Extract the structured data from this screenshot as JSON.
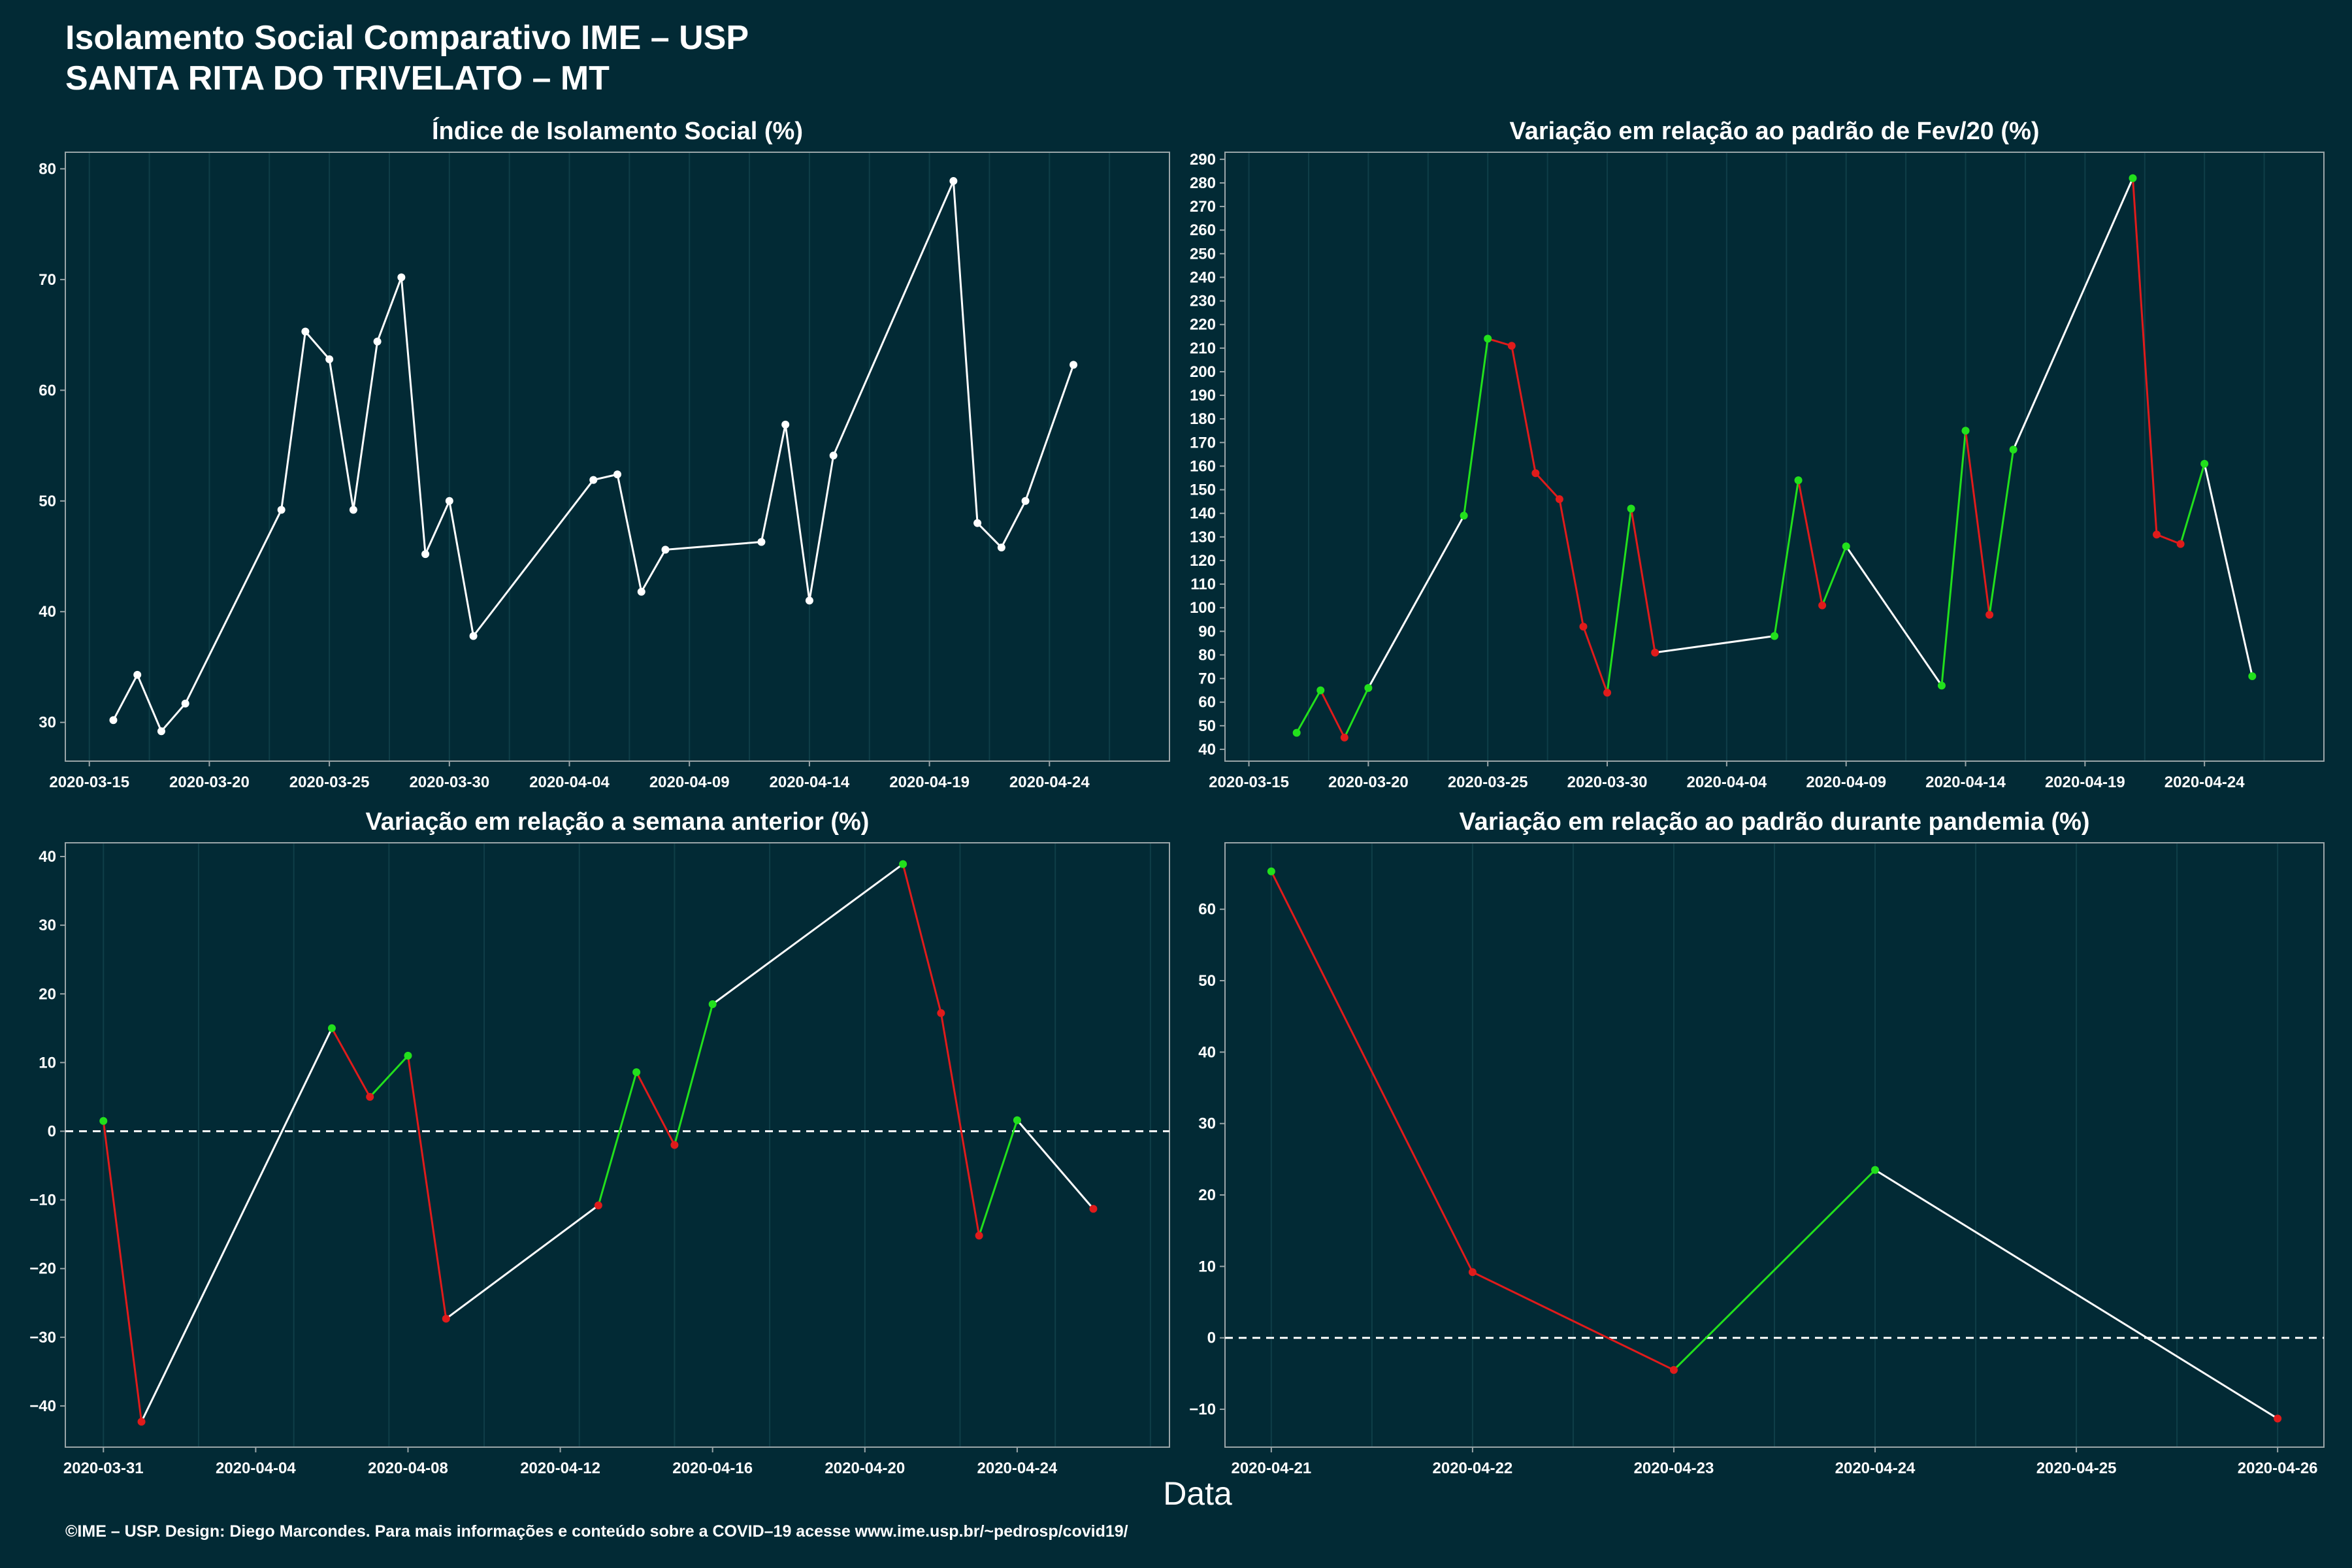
{
  "header": {
    "title_line1": "Isolamento Social Comparativo IME – USP",
    "title_line2": "SANTA RITA DO TRIVELATO – MT"
  },
  "xlabel": "Data",
  "caption": "©IME – USP. Design: Diego Marcondes. Para mais informações e conteúdo sobre a COVID–19 acesse www.ime.usp.br/~pedrosp/covid19/",
  "colors": {
    "background": "#022a35",
    "grid": "#0f3e48",
    "neutral_line": "#ffffff",
    "up": "#22e01c",
    "down": "#e01b1b"
  },
  "chart_data": [
    {
      "id": "isolation-index",
      "type": "line",
      "title": "Índice de Isolamento Social (%)",
      "xlim": [
        "2020-03-14",
        "2020-04-29"
      ],
      "ylim": [
        26.5,
        81.5
      ],
      "yticks": [
        30,
        40,
        50,
        60,
        70,
        80
      ],
      "xticks": [
        "2020-03-15",
        "2020-03-20",
        "2020-03-25",
        "2020-03-30",
        "2020-04-04",
        "2020-04-09",
        "2020-04-14",
        "2020-04-19",
        "2020-04-24"
      ],
      "colored": false,
      "points": [
        [
          "2020-03-16",
          30.2
        ],
        [
          "2020-03-17",
          34.3
        ],
        [
          "2020-03-18",
          29.2
        ],
        [
          "2020-03-19",
          31.7
        ],
        [
          "2020-03-23",
          49.2
        ],
        [
          "2020-03-24",
          65.3
        ],
        [
          "2020-03-25",
          62.8
        ],
        [
          "2020-03-26",
          49.2
        ],
        [
          "2020-03-27",
          64.4
        ],
        [
          "2020-03-28",
          70.2
        ],
        [
          "2020-03-29",
          45.2
        ],
        [
          "2020-03-30",
          50.0
        ],
        [
          "2020-03-31",
          37.8
        ],
        [
          "2020-04-05",
          51.9
        ],
        [
          "2020-04-06",
          52.4
        ],
        [
          "2020-04-07",
          41.8
        ],
        [
          "2020-04-08",
          45.6
        ],
        [
          "2020-04-12",
          46.3
        ],
        [
          "2020-04-13",
          56.9
        ],
        [
          "2020-04-14",
          41.0
        ],
        [
          "2020-04-15",
          54.1
        ],
        [
          "2020-04-20",
          78.9
        ],
        [
          "2020-04-21",
          48.0
        ],
        [
          "2020-04-22",
          45.8
        ],
        [
          "2020-04-23",
          50.0
        ],
        [
          "2020-04-25",
          62.3
        ]
      ]
    },
    {
      "id": "variation-feb",
      "type": "line",
      "title": "Variação em relação ao padrão de Fev/20 (%)",
      "xlim": [
        "2020-03-14",
        "2020-04-29"
      ],
      "ylim": [
        35,
        293
      ],
      "yticks": [
        40,
        50,
        60,
        70,
        80,
        90,
        100,
        110,
        120,
        130,
        140,
        150,
        160,
        170,
        180,
        190,
        200,
        210,
        220,
        230,
        240,
        250,
        260,
        270,
        280,
        290
      ],
      "xticks": [
        "2020-03-15",
        "2020-03-20",
        "2020-03-25",
        "2020-03-30",
        "2020-04-04",
        "2020-04-09",
        "2020-04-14",
        "2020-04-19",
        "2020-04-24"
      ],
      "colored": true,
      "points": [
        [
          "2020-03-17",
          47
        ],
        [
          "2020-03-18",
          65
        ],
        [
          "2020-03-19",
          45
        ],
        [
          "2020-03-20",
          66
        ],
        [
          "2020-03-24",
          139
        ],
        [
          "2020-03-25",
          214
        ],
        [
          "2020-03-26",
          211
        ],
        [
          "2020-03-27",
          157
        ],
        [
          "2020-03-28",
          146
        ],
        [
          "2020-03-29",
          92
        ],
        [
          "2020-03-30",
          64
        ],
        [
          "2020-03-31",
          142
        ],
        [
          "2020-04-01",
          81
        ],
        [
          "2020-04-06",
          88
        ],
        [
          "2020-04-07",
          154
        ],
        [
          "2020-04-08",
          101
        ],
        [
          "2020-04-09",
          126
        ],
        [
          "2020-04-13",
          67
        ],
        [
          "2020-04-14",
          175
        ],
        [
          "2020-04-15",
          97
        ],
        [
          "2020-04-16",
          167
        ],
        [
          "2020-04-21",
          282
        ],
        [
          "2020-04-22",
          131
        ],
        [
          "2020-04-23",
          127
        ],
        [
          "2020-04-24",
          161
        ],
        [
          "2020-04-26",
          71
        ]
      ]
    },
    {
      "id": "variation-week",
      "type": "line",
      "title": "Variação em relação a semana anterior (%)",
      "xlim": [
        "2020-03-30",
        "2020-04-28"
      ],
      "ylim": [
        -46,
        42
      ],
      "yticks": [
        -40,
        -30,
        -20,
        -10,
        0,
        10,
        20,
        30,
        40
      ],
      "xticks": [
        "2020-03-31",
        "2020-04-04",
        "2020-04-08",
        "2020-04-12",
        "2020-04-16",
        "2020-04-20",
        "2020-04-24"
      ],
      "colored": true,
      "zero_line": true,
      "points": [
        [
          "2020-03-31",
          1.5
        ],
        [
          "2020-04-01",
          -42.3
        ],
        [
          "2020-04-06",
          15.0
        ],
        [
          "2020-04-07",
          5.0
        ],
        [
          "2020-04-08",
          11.0
        ],
        [
          "2020-04-09",
          -27.3
        ],
        [
          "2020-04-13",
          -10.8
        ],
        [
          "2020-04-14",
          8.6
        ],
        [
          "2020-04-15",
          -2.0
        ],
        [
          "2020-04-16",
          18.5
        ],
        [
          "2020-04-21",
          38.9
        ],
        [
          "2020-04-22",
          17.2
        ],
        [
          "2020-04-23",
          -15.2
        ],
        [
          "2020-04-24",
          1.6
        ],
        [
          "2020-04-26",
          -11.3
        ]
      ]
    },
    {
      "id": "variation-pandemic",
      "type": "line",
      "title": "Variação em relação ao padrão durante pandemia (%)",
      "xlim": [
        "2020-04-20.77",
        "2020-04-26.23"
      ],
      "ylim": [
        -15.3,
        69.3
      ],
      "yticks": [
        -10,
        0,
        10,
        20,
        30,
        40,
        50,
        60
      ],
      "xticks": [
        "2020-04-21",
        "2020-04-22",
        "2020-04-23",
        "2020-04-24",
        "2020-04-25",
        "2020-04-26"
      ],
      "colored": true,
      "zero_line": true,
      "points": [
        [
          "2020-04-21",
          65.3
        ],
        [
          "2020-04-22",
          9.2
        ],
        [
          "2020-04-23",
          -4.5
        ],
        [
          "2020-04-24",
          23.5
        ],
        [
          "2020-04-26",
          -11.3
        ]
      ]
    }
  ]
}
